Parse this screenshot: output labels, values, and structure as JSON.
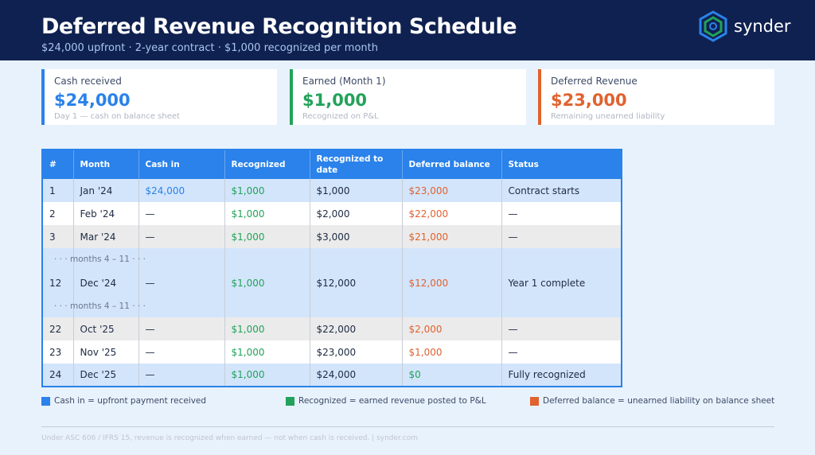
{
  "header": {
    "title": "Deferred Revenue Recognition Schedule",
    "subtitle": "$24,000 upfront  ·  2-year contract  ·  $1,000 recognized per month",
    "logo": "synder"
  },
  "cards": [
    {
      "label": "Cash received",
      "value": "$24,000",
      "sub": "Day 1 — cash on balance sheet",
      "color": "#2a82ea"
    },
    {
      "label": "Earned (Month 1)",
      "value": "$1,000",
      "sub": "Recognized on P&L",
      "color": "#22a25a"
    },
    {
      "label": "Deferred Revenue",
      "value": "$23,000",
      "sub": "Remaining unearned liability",
      "color": "#e0622f"
    }
  ],
  "table": {
    "headers": [
      "#",
      "Month",
      "Cash in",
      "Recognized",
      "Recognized to date",
      "Deferred balance",
      "Status"
    ],
    "rows": [
      [
        "1",
        "Jan '24",
        "$24,000",
        "$1,000",
        "$1,000",
        "$23,000",
        "Contract starts"
      ],
      [
        "2",
        "Feb '24",
        "—",
        "$1,000",
        "$2,000",
        "$22,000",
        "—"
      ],
      [
        "3",
        "Mar '24",
        "—",
        "$1,000",
        "$3,000",
        "$21,000",
        "—"
      ],
      [
        "12",
        "Dec '24",
        "—",
        "$1,000",
        "$12,000",
        "$12,000",
        "Year 1 complete"
      ],
      [
        "22",
        "Oct '25",
        "—",
        "$1,000",
        "$22,000",
        "$2,000",
        "—"
      ],
      [
        "23",
        "Nov '25",
        "—",
        "$1,000",
        "$23,000",
        "$1,000",
        "—"
      ],
      [
        "24",
        "Dec '25",
        "—",
        "$1,000",
        "$24,000",
        "$0",
        "Fully recognized"
      ]
    ],
    "gap_label": "· · ·  months 4 – 11  · · ·"
  },
  "legend": [
    "Cash in = upfront payment received",
    "Recognized = earned revenue posted to P&L",
    "Deferred balance = unearned liability on balance sheet"
  ],
  "footer": "Under ASC 606 / IFRS 15, revenue is recognized when earned — not when cash is received.  |  synder.com"
}
